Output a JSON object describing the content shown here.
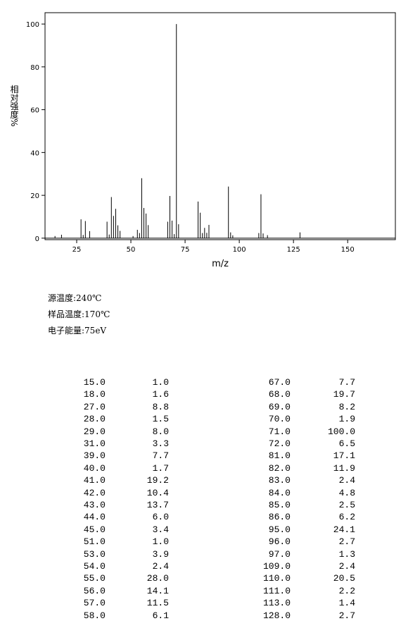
{
  "chart_data": {
    "type": "bar",
    "xlabel": "m/z",
    "ylabel": "相对强度%",
    "color": "#000000",
    "x": [
      15,
      18,
      27,
      28,
      29,
      31,
      39,
      40,
      41,
      42,
      43,
      44,
      45,
      51,
      53,
      54,
      55,
      56,
      57,
      58,
      67,
      68,
      69,
      70,
      71,
      72,
      81,
      82,
      83,
      84,
      85,
      86,
      95,
      96,
      97,
      109,
      110,
      111,
      113,
      128
    ],
    "values": [
      1.0,
      1.6,
      8.8,
      1.5,
      8.0,
      3.3,
      7.7,
      1.7,
      19.2,
      10.4,
      13.7,
      6.0,
      3.4,
      1.0,
      3.9,
      2.4,
      28.0,
      14.1,
      11.5,
      6.1,
      7.7,
      19.7,
      8.2,
      1.9,
      100.0,
      6.5,
      17.1,
      11.9,
      2.4,
      4.8,
      2.5,
      6.2,
      24.1,
      2.7,
      1.3,
      2.4,
      20.5,
      2.2,
      1.4,
      2.7
    ],
    "xlim": [
      10.4,
      172
    ],
    "xticks": [
      25,
      50,
      75,
      100,
      125,
      150
    ],
    "ylim": [
      -0.7,
      105.3
    ],
    "yticks": [
      0,
      20,
      40,
      60,
      80,
      100
    ]
  },
  "info": [
    "源温度:240℃",
    "样品温度:170℃",
    "电子能量:75eV"
  ],
  "table": {
    "rows": [
      [
        "15.0",
        "1.0",
        "67.0",
        "7.7"
      ],
      [
        "18.0",
        "1.6",
        "68.0",
        "19.7"
      ],
      [
        "27.0",
        "8.8",
        "69.0",
        "8.2"
      ],
      [
        "28.0",
        "1.5",
        "70.0",
        "1.9"
      ],
      [
        "29.0",
        "8.0",
        "71.0",
        "100.0"
      ],
      [
        "31.0",
        "3.3",
        "72.0",
        "6.5"
      ],
      [
        "39.0",
        "7.7",
        "81.0",
        "17.1"
      ],
      [
        "40.0",
        "1.7",
        "82.0",
        "11.9"
      ],
      [
        "41.0",
        "19.2",
        "83.0",
        "2.4"
      ],
      [
        "42.0",
        "10.4",
        "84.0",
        "4.8"
      ],
      [
        "43.0",
        "13.7",
        "85.0",
        "2.5"
      ],
      [
        "44.0",
        "6.0",
        "86.0",
        "6.2"
      ],
      [
        "45.0",
        "3.4",
        "95.0",
        "24.1"
      ],
      [
        "51.0",
        "1.0",
        "96.0",
        "2.7"
      ],
      [
        "53.0",
        "3.9",
        "97.0",
        "1.3"
      ],
      [
        "54.0",
        "2.4",
        "109.0",
        "2.4"
      ],
      [
        "55.0",
        "28.0",
        "110.0",
        "20.5"
      ],
      [
        "56.0",
        "14.1",
        "111.0",
        "2.2"
      ],
      [
        "57.0",
        "11.5",
        "113.0",
        "1.4"
      ],
      [
        "58.0",
        "6.1",
        "128.0",
        "2.7"
      ]
    ]
  }
}
